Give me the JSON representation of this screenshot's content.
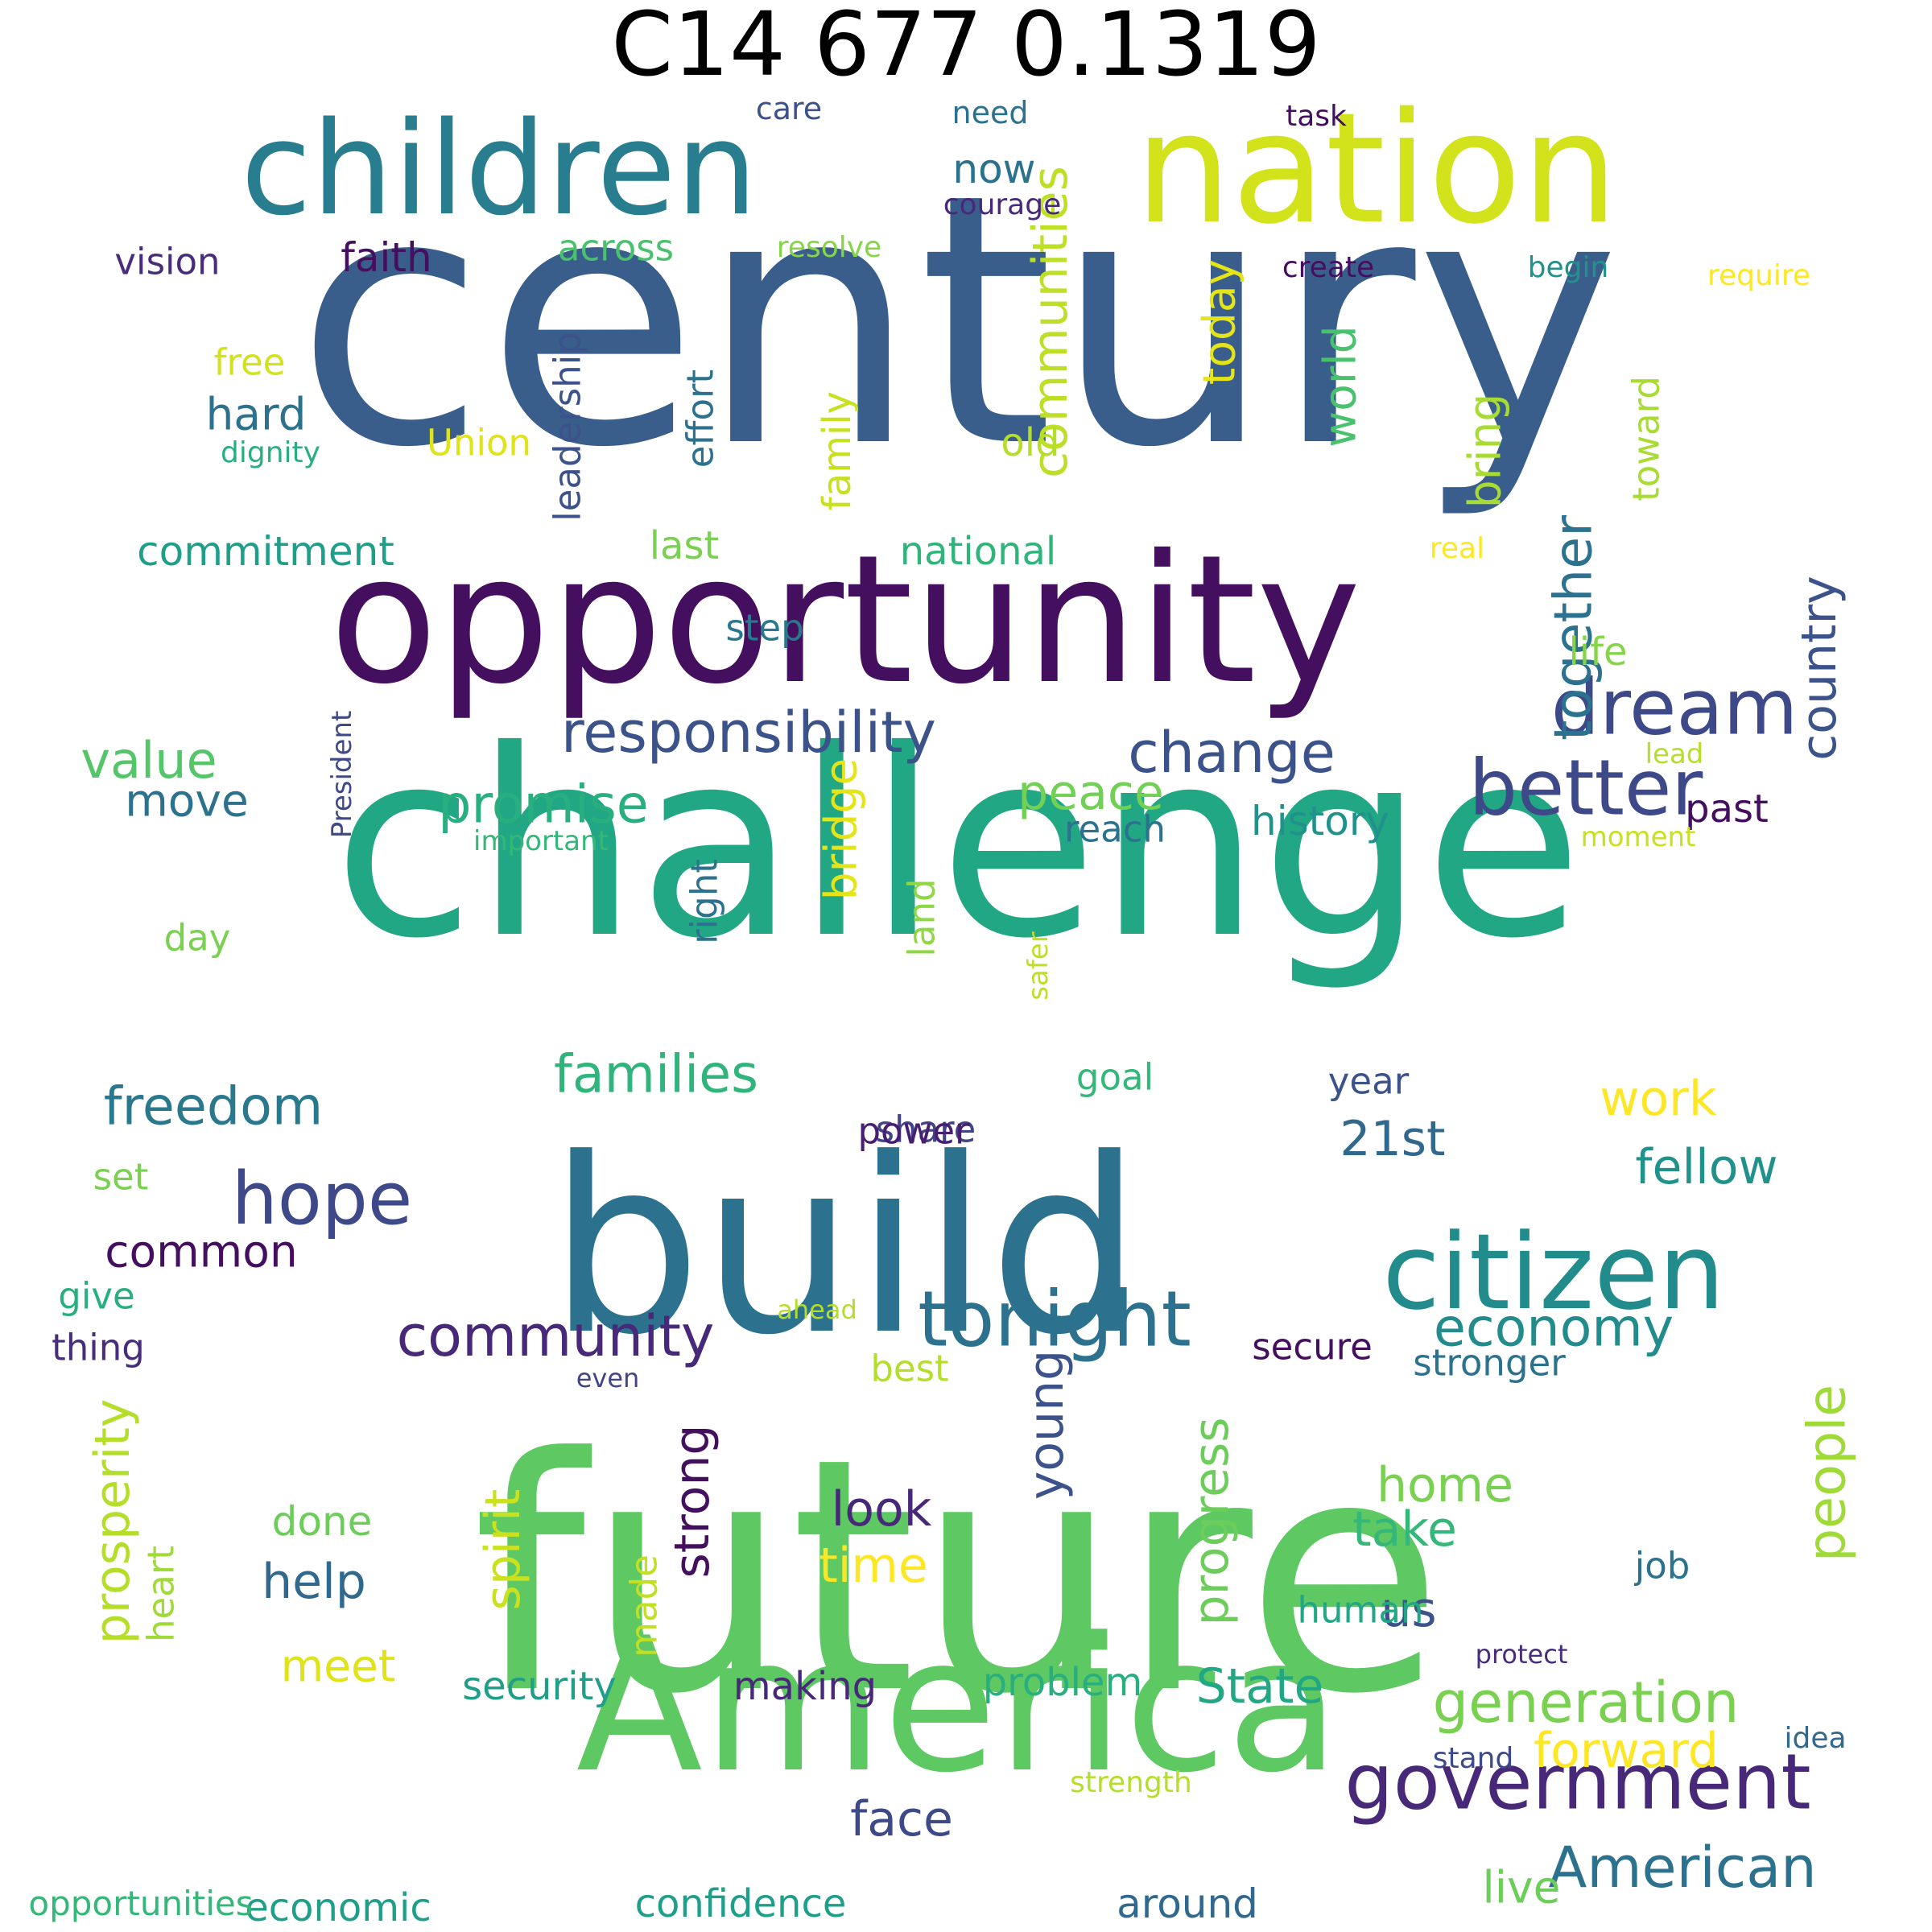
{
  "title": "C14 677 0.1319",
  "words": [
    {
      "text": "century",
      "color": "#3a5e8c"
    },
    {
      "text": "future",
      "color": "#5ec962"
    },
    {
      "text": "challenge",
      "color": "#22a785"
    },
    {
      "text": "build",
      "color": "#2c728e"
    },
    {
      "text": "opportunity",
      "color": "#440f5e"
    },
    {
      "text": "America",
      "color": "#5ec962"
    },
    {
      "text": "nation",
      "color": "#d2e21b"
    },
    {
      "text": "children",
      "color": "#287d8e"
    },
    {
      "text": "citizen",
      "color": "#228c8d"
    },
    {
      "text": "government",
      "color": "#482878"
    },
    {
      "text": "tonight",
      "color": "#2c728e"
    },
    {
      "text": "responsibility",
      "color": "#3b528b"
    },
    {
      "text": "better",
      "color": "#3e4989"
    },
    {
      "text": "dream",
      "color": "#3e4989"
    },
    {
      "text": "hope",
      "color": "#3e4989"
    },
    {
      "text": "community",
      "color": "#482878"
    },
    {
      "text": "generation",
      "color": "#7ad151"
    },
    {
      "text": "American",
      "color": "#2c728e"
    },
    {
      "text": "economy",
      "color": "#228c8d"
    },
    {
      "text": "people",
      "color": "#a0da39"
    },
    {
      "text": "change",
      "color": "#3b528b"
    },
    {
      "text": "communities",
      "color": "#bddf26"
    },
    {
      "text": "freedom",
      "color": "#2a788e"
    },
    {
      "text": "families",
      "color": "#2fb47c"
    },
    {
      "text": "promise",
      "color": "#29af7f"
    },
    {
      "text": "together",
      "color": "#2c728e"
    },
    {
      "text": "prosperity",
      "color": "#b5de2b"
    },
    {
      "text": "progress",
      "color": "#6ccd5a"
    },
    {
      "text": "forward",
      "color": "#fde725"
    },
    {
      "text": "work",
      "color": "#fde725"
    },
    {
      "text": "look",
      "color": "#482878"
    },
    {
      "text": "value",
      "color": "#54c568"
    },
    {
      "text": "country",
      "color": "#3b528b"
    },
    {
      "text": "young",
      "color": "#3b528b"
    },
    {
      "text": "21st",
      "color": "#31688e"
    },
    {
      "text": "fellow",
      "color": "#21918c"
    },
    {
      "text": "peace",
      "color": "#73d056"
    },
    {
      "text": "home",
      "color": "#7ad151"
    },
    {
      "text": "take",
      "color": "#35b779"
    },
    {
      "text": "bridge",
      "color": "#e5e419"
    },
    {
      "text": "common",
      "color": "#440f5e"
    },
    {
      "text": "world",
      "color": "#4ac16d"
    },
    {
      "text": "bring",
      "color": "#a8db34"
    },
    {
      "text": "time",
      "color": "#fde725"
    },
    {
      "text": "help",
      "color": "#31688e"
    },
    {
      "text": "face",
      "color": "#3e4989"
    },
    {
      "text": "strong",
      "color": "#440f5e"
    },
    {
      "text": "spirit",
      "color": "#cae11f"
    },
    {
      "text": "State",
      "color": "#22a785"
    },
    {
      "text": "today",
      "color": "#e5e419"
    },
    {
      "text": "move",
      "color": "#2c728e"
    },
    {
      "text": "us",
      "color": "#3b528b"
    },
    {
      "text": "hard",
      "color": "#2c728e"
    },
    {
      "text": "live",
      "color": "#6ccd5a"
    },
    {
      "text": "meet",
      "color": "#dfe318"
    },
    {
      "text": "history",
      "color": "#21918c"
    },
    {
      "text": "economic",
      "color": "#1f9e89"
    },
    {
      "text": "confidence",
      "color": "#1f9e89"
    },
    {
      "text": "making",
      "color": "#482878"
    },
    {
      "text": "problem",
      "color": "#29af7f"
    },
    {
      "text": "security",
      "color": "#1f9e89"
    },
    {
      "text": "national",
      "color": "#2fb47c"
    },
    {
      "text": "now",
      "color": "#2c728e"
    },
    {
      "text": "faith",
      "color": "#440f5e"
    },
    {
      "text": "vision",
      "color": "#472d7b"
    },
    {
      "text": "across",
      "color": "#4ac16d"
    },
    {
      "text": "effort",
      "color": "#2c728e"
    },
    {
      "text": "leadership",
      "color": "#3b528b"
    },
    {
      "text": "Union",
      "color": "#dfe318"
    },
    {
      "text": "free",
      "color": "#d2e21b"
    },
    {
      "text": "commitment",
      "color": "#1f9e89"
    },
    {
      "text": "last",
      "color": "#7ad151"
    },
    {
      "text": "step",
      "color": "#2a788e"
    },
    {
      "text": "life",
      "color": "#86d549"
    },
    {
      "text": "old",
      "color": "#b5de2b"
    },
    {
      "text": "family",
      "color": "#c8e020"
    },
    {
      "text": "toward",
      "color": "#a8db34"
    },
    {
      "text": "reach",
      "color": "#2c728e"
    },
    {
      "text": "past",
      "color": "#440f5e"
    },
    {
      "text": "right",
      "color": "#2c728e"
    },
    {
      "text": "land",
      "color": "#8fd744"
    },
    {
      "text": "day",
      "color": "#7ad151"
    },
    {
      "text": "goal",
      "color": "#35b779"
    },
    {
      "text": "share",
      "color": "#414487"
    },
    {
      "text": "year",
      "color": "#3b528b"
    },
    {
      "text": "power",
      "color": "#481f70"
    },
    {
      "text": "set",
      "color": "#7ad151"
    },
    {
      "text": "give",
      "color": "#29af7f"
    },
    {
      "text": "thing",
      "color": "#472d7b"
    },
    {
      "text": "secure",
      "color": "#440f5e"
    },
    {
      "text": "stronger",
      "color": "#2c728e"
    },
    {
      "text": "best",
      "color": "#b5de2b"
    },
    {
      "text": "done",
      "color": "#6ccd5a"
    },
    {
      "text": "heart",
      "color": "#a0da39"
    },
    {
      "text": "made",
      "color": "#c2df23"
    },
    {
      "text": "job",
      "color": "#2c728e"
    },
    {
      "text": "human",
      "color": "#22a785"
    },
    {
      "text": "around",
      "color": "#31688e"
    },
    {
      "text": "opportunities",
      "color": "#35b779"
    },
    {
      "text": "care",
      "color": "#3b528b"
    },
    {
      "text": "need",
      "color": "#2c728e"
    },
    {
      "text": "task",
      "color": "#440f5e"
    },
    {
      "text": "courage",
      "color": "#482878"
    },
    {
      "text": "resolve",
      "color": "#86d549"
    },
    {
      "text": "create",
      "color": "#440f5e"
    },
    {
      "text": "begin",
      "color": "#21918c"
    },
    {
      "text": "require",
      "color": "#fde725"
    },
    {
      "text": "dignity",
      "color": "#29af7f"
    },
    {
      "text": "real",
      "color": "#fde725"
    },
    {
      "text": "lead",
      "color": "#b5de2b"
    },
    {
      "text": "President",
      "color": "#3e4989"
    },
    {
      "text": "important",
      "color": "#35b779"
    },
    {
      "text": "moment",
      "color": "#c8e020"
    },
    {
      "text": "safer",
      "color": "#bddf26"
    },
    {
      "text": "ahead",
      "color": "#b5de2b"
    },
    {
      "text": "even",
      "color": "#414487"
    },
    {
      "text": "protect",
      "color": "#472d7b"
    },
    {
      "text": "stand",
      "color": "#3e4989"
    },
    {
      "text": "idea",
      "color": "#31688e"
    },
    {
      "text": "strength",
      "color": "#b5de2b"
    }
  ]
}
